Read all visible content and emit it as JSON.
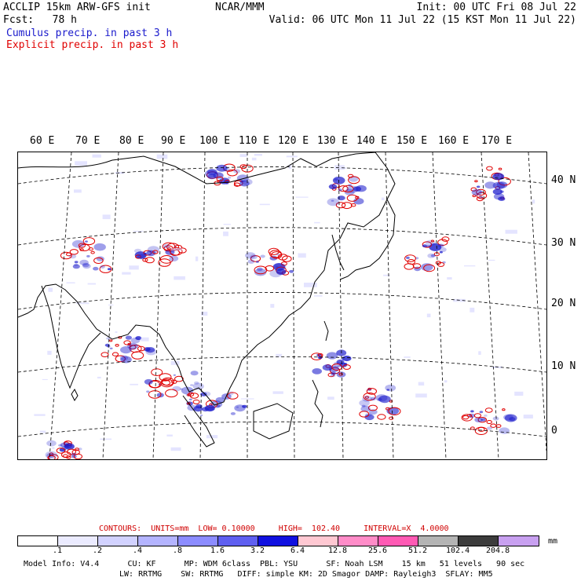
{
  "header": {
    "left_line1": "ACCLIP 15km ARW-GFS init",
    "center_line1": "NCAR/MMM",
    "right_line1": "Init: 00 UTC Fri 08 Jul 22",
    "left_line2": "Fcst:   78 h",
    "right_line2": "Valid: 06 UTC Mon 11 Jul 22 (15 KST Mon 11 Jul 22)",
    "cumulus_label": "Cumulus precip. in past 3 h",
    "explicit_label": "Explicit precip. in past 3 h",
    "cumulus_color": "#1a1acc",
    "explicit_color": "#e00000"
  },
  "longitude_labels": [
    "60 E",
    "70 E",
    "80 E",
    "90 E",
    "100 E",
    "110 E",
    "120 E",
    "130 E",
    "140 E",
    "150 E",
    "160 E",
    "170 E"
  ],
  "latitude_labels": [
    "40 N",
    "30 N",
    "20 N",
    "10 N",
    "0"
  ],
  "contours": {
    "text": "CONTOURS:  UNITS=mm  LOW= 0.10000     HIGH=  102.40     INTERVAL=X  4.0000"
  },
  "legend": {
    "unit": "mm",
    "ticks": [
      ".1",
      ".2",
      ".4",
      ".8",
      "1.6",
      "3.2",
      "6.4",
      "12.8",
      "25.6",
      "51.2",
      "102.4",
      "204.8"
    ],
    "colors": [
      "#ffffff",
      "#ebebff",
      "#d2d2ff",
      "#b4b4ff",
      "#8c8cff",
      "#5f5ff0",
      "#1010e0",
      "#ffc8d2",
      "#ff8cc8",
      "#ff5ab4",
      "#b4b4b4",
      "#3c3c3c",
      "#c8a0f0"
    ]
  },
  "model_info": {
    "line1": "Model Info: V4.4      CU: KF      MP: WDM 6class  PBL: YSU      SF: Noah LSM    15 km   51 levels   90 sec",
    "line2": "LW: RRTMG    SW: RRTMG   DIFF: simple KM: 2D Smagor DAMP: Rayleigh3  SFLAY: MM5"
  }
}
